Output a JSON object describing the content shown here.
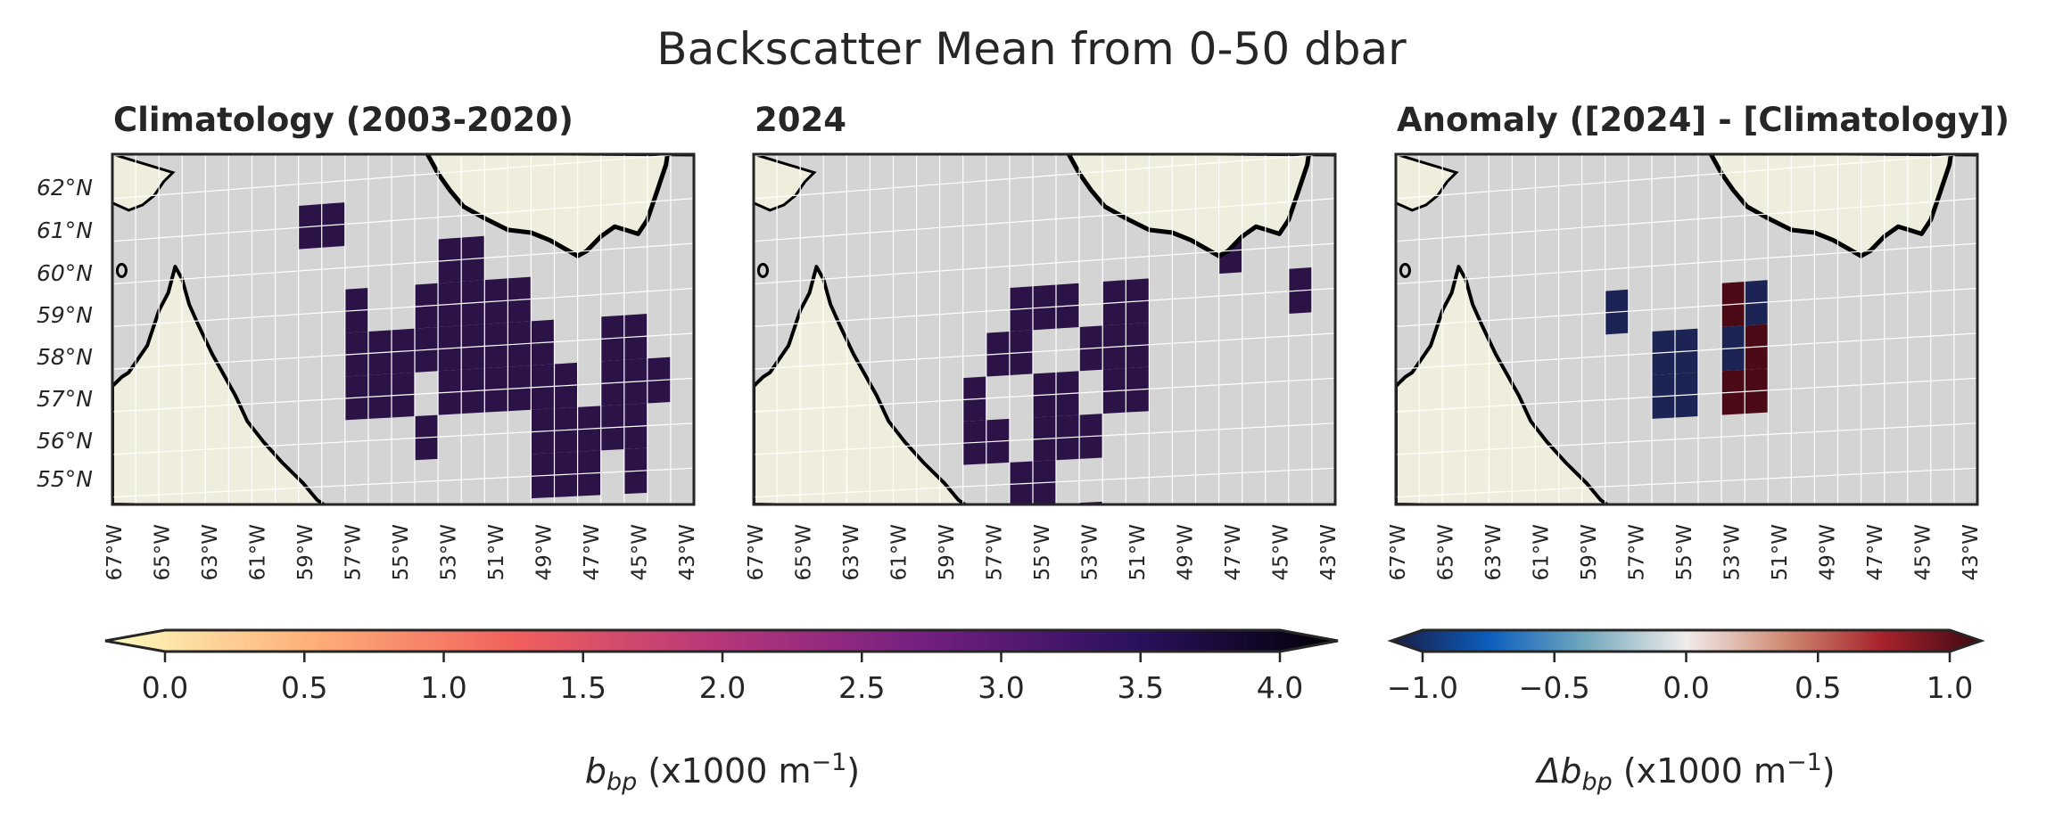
{
  "figure": {
    "title": "Backscatter Mean from 0-50 dbar"
  },
  "panels": [
    {
      "id": "clim",
      "title": "Climatology (2003-2020)",
      "lat_labels": [
        "62°N",
        "61°N",
        "60°N",
        "59°N",
        "58°N",
        "57°N",
        "56°N",
        "55°N"
      ],
      "lon_labels": [
        "67°W",
        "65°W",
        "63°W",
        "61°W",
        "59°W",
        "57°W",
        "55°W",
        "53°W",
        "51°W",
        "49°W",
        "47°W",
        "45°W",
        "43°W"
      ]
    },
    {
      "id": "y2024",
      "title": "2024",
      "lat_labels": [],
      "lon_labels": [
        "67°W",
        "65°W",
        "63°W",
        "61°W",
        "59°W",
        "57°W",
        "55°W",
        "53°W",
        "51°W",
        "49°W",
        "47°W",
        "45°W",
        "43°W"
      ]
    },
    {
      "id": "anom",
      "title": "Anomaly ([2024] - [Climatology])",
      "lat_labels": [],
      "lon_labels": [
        "67°W",
        "65°W",
        "63°W",
        "61°W",
        "59°W",
        "57°W",
        "55°W",
        "53°W",
        "51°W",
        "49°W",
        "47°W",
        "45°W",
        "43°W"
      ]
    }
  ],
  "map_extent": {
    "lon": [
      -67,
      -42
    ],
    "lat": [
      54.5,
      62.5
    ]
  },
  "colors": {
    "ocean": "#d4d4d4",
    "land": "#efeedd",
    "coast": "#000000",
    "grid": "#ffffff",
    "frame": "#262626"
  },
  "chart_data": {
    "type": "heatmap",
    "grid_cell_deg": {
      "lon": 1,
      "lat": 1
    },
    "climatology_cells": [
      {
        "lon": -58.5,
        "lat": 61.0,
        "value": 4.0
      },
      {
        "lon": -57.5,
        "lat": 61.0,
        "value": 4.0
      },
      {
        "lon": -56.5,
        "lat": 59.0,
        "value": 4.0
      },
      {
        "lon": -56.5,
        "lat": 58.0,
        "value": 4.0
      },
      {
        "lon": -56.5,
        "lat": 57.0,
        "value": 4.0
      },
      {
        "lon": -55.5,
        "lat": 58.0,
        "value": 4.0
      },
      {
        "lon": -55.5,
        "lat": 57.0,
        "value": 4.0
      },
      {
        "lon": -54.5,
        "lat": 58.0,
        "value": 4.0
      },
      {
        "lon": -54.5,
        "lat": 57.0,
        "value": 4.0
      },
      {
        "lon": -53.5,
        "lat": 59.0,
        "value": 4.0
      },
      {
        "lon": -53.5,
        "lat": 58.0,
        "value": 4.0
      },
      {
        "lon": -53.5,
        "lat": 56.0,
        "value": 4.0
      },
      {
        "lon": -52.5,
        "lat": 60.0,
        "value": 4.0
      },
      {
        "lon": -52.5,
        "lat": 59.0,
        "value": 4.0
      },
      {
        "lon": -52.5,
        "lat": 58.0,
        "value": 4.0
      },
      {
        "lon": -52.5,
        "lat": 57.0,
        "value": 4.0
      },
      {
        "lon": -51.5,
        "lat": 60.0,
        "value": 4.0
      },
      {
        "lon": -51.5,
        "lat": 59.0,
        "value": 4.0
      },
      {
        "lon": -51.5,
        "lat": 58.0,
        "value": 4.0
      },
      {
        "lon": -51.5,
        "lat": 57.0,
        "value": 4.0
      },
      {
        "lon": -50.5,
        "lat": 59.0,
        "value": 4.0
      },
      {
        "lon": -50.5,
        "lat": 58.0,
        "value": 4.0
      },
      {
        "lon": -50.5,
        "lat": 57.0,
        "value": 4.0
      },
      {
        "lon": -49.5,
        "lat": 59.0,
        "value": 4.0
      },
      {
        "lon": -49.5,
        "lat": 58.0,
        "value": 4.0
      },
      {
        "lon": -49.5,
        "lat": 57.0,
        "value": 4.0
      },
      {
        "lon": -48.5,
        "lat": 58.0,
        "value": 4.0
      },
      {
        "lon": -48.5,
        "lat": 57.0,
        "value": 4.0
      },
      {
        "lon": -48.5,
        "lat": 56.0,
        "value": 4.0
      },
      {
        "lon": -48.5,
        "lat": 55.0,
        "value": 4.0
      },
      {
        "lon": -47.5,
        "lat": 57.0,
        "value": 4.0
      },
      {
        "lon": -47.5,
        "lat": 56.0,
        "value": 4.0
      },
      {
        "lon": -47.5,
        "lat": 55.0,
        "value": 4.0
      },
      {
        "lon": -46.5,
        "lat": 56.0,
        "value": 4.0
      },
      {
        "lon": -46.5,
        "lat": 55.0,
        "value": 4.0
      },
      {
        "lon": -45.5,
        "lat": 58.0,
        "value": 4.0
      },
      {
        "lon": -45.5,
        "lat": 57.0,
        "value": 4.0
      },
      {
        "lon": -45.5,
        "lat": 56.0,
        "value": 4.0
      },
      {
        "lon": -44.5,
        "lat": 58.0,
        "value": 4.0
      },
      {
        "lon": -44.5,
        "lat": 57.0,
        "value": 4.0
      },
      {
        "lon": -44.5,
        "lat": 56.0,
        "value": 4.0
      },
      {
        "lon": -44.5,
        "lat": 55.0,
        "value": 4.0
      },
      {
        "lon": -43.5,
        "lat": 57.0,
        "value": 4.0
      }
    ],
    "y2024_cells": [
      {
        "lon": -57.5,
        "lat": 57.0,
        "value": 4.0
      },
      {
        "lon": -57.5,
        "lat": 56.0,
        "value": 4.0
      },
      {
        "lon": -56.5,
        "lat": 58.0,
        "value": 4.0
      },
      {
        "lon": -56.5,
        "lat": 56.0,
        "value": 4.0
      },
      {
        "lon": -55.5,
        "lat": 59.0,
        "value": 4.0
      },
      {
        "lon": -55.5,
        "lat": 58.0,
        "value": 4.0
      },
      {
        "lon": -55.5,
        "lat": 55.0,
        "value": 4.0
      },
      {
        "lon": -54.5,
        "lat": 59.0,
        "value": 4.0
      },
      {
        "lon": -54.5,
        "lat": 57.0,
        "value": 4.0
      },
      {
        "lon": -54.5,
        "lat": 56.0,
        "value": 4.0
      },
      {
        "lon": -54.5,
        "lat": 55.0,
        "value": 4.0
      },
      {
        "lon": -54.5,
        "lat": 54.0,
        "value": 4.0
      },
      {
        "lon": -53.5,
        "lat": 59.0,
        "value": 4.0
      },
      {
        "lon": -53.5,
        "lat": 57.0,
        "value": 4.0
      },
      {
        "lon": -53.5,
        "lat": 56.0,
        "value": 4.0
      },
      {
        "lon": -52.5,
        "lat": 58.0,
        "value": 4.0
      },
      {
        "lon": -52.5,
        "lat": 56.0,
        "value": 4.0
      },
      {
        "lon": -52.5,
        "lat": 54.0,
        "value": 4.0
      },
      {
        "lon": -51.5,
        "lat": 59.0,
        "value": 4.0
      },
      {
        "lon": -51.5,
        "lat": 58.0,
        "value": 4.0
      },
      {
        "lon": -51.5,
        "lat": 57.0,
        "value": 4.0
      },
      {
        "lon": -50.5,
        "lat": 59.0,
        "value": 4.0
      },
      {
        "lon": -50.5,
        "lat": 58.0,
        "value": 4.0
      },
      {
        "lon": -50.5,
        "lat": 57.0,
        "value": 4.0
      },
      {
        "lon": -46.5,
        "lat": 60.0,
        "value": 4.0
      },
      {
        "lon": -43.5,
        "lat": 59.0,
        "value": 4.0
      }
    ],
    "anomaly_cells": [
      {
        "lon": -57.5,
        "lat": 59.0,
        "value": -1.0
      },
      {
        "lon": -55.5,
        "lat": 58.0,
        "value": -1.0
      },
      {
        "lon": -55.5,
        "lat": 57.0,
        "value": -1.0
      },
      {
        "lon": -54.5,
        "lat": 58.0,
        "value": -1.0
      },
      {
        "lon": -54.5,
        "lat": 57.0,
        "value": -1.0
      },
      {
        "lon": -52.5,
        "lat": 59.0,
        "value": 1.0
      },
      {
        "lon": -52.5,
        "lat": 58.0,
        "value": -1.0
      },
      {
        "lon": -52.5,
        "lat": 57.0,
        "value": 1.0
      },
      {
        "lon": -51.5,
        "lat": 59.0,
        "value": -1.0
      },
      {
        "lon": -51.5,
        "lat": 58.0,
        "value": 1.0
      },
      {
        "lon": -51.5,
        "lat": 57.0,
        "value": 1.0
      }
    ],
    "colorbars": [
      {
        "id": "bbp",
        "label": "b_bp (x1000 m⁻¹)",
        "label_parts": {
          "base": "b",
          "sub": "bp",
          "rest": " (x1000 m",
          "sup": "−1",
          "close": ")"
        },
        "range": [
          0.0,
          4.0
        ],
        "ticks": [
          "0.0",
          "0.5",
          "1.0",
          "1.5",
          "2.0",
          "2.5",
          "3.0",
          "3.5",
          "4.0"
        ],
        "tick_values": [
          0.0,
          0.5,
          1.0,
          1.5,
          2.0,
          2.5,
          3.0,
          3.5,
          4.0
        ],
        "cmap": "magma_r",
        "cmap_colors": [
          "#fcfdbf",
          "#feb078",
          "#f1605d",
          "#b5367a",
          "#721f81",
          "#2c115f",
          "#000004"
        ],
        "extend": "both"
      },
      {
        "id": "anom",
        "label": "Δb_bp (x1000 m⁻¹)",
        "label_parts": {
          "base": "Δb",
          "sub": "bp",
          "rest": " (x1000 m",
          "sup": "−1",
          "close": ")"
        },
        "range": [
          -1.0,
          1.0
        ],
        "ticks": [
          "−1.0",
          "−0.5",
          "0.0",
          "0.5",
          "1.0"
        ],
        "tick_values": [
          -1.0,
          -0.5,
          0.0,
          0.5,
          1.0
        ],
        "cmap": "balance",
        "cmap_colors": [
          "#181c43",
          "#0c5ebe",
          "#75aabe",
          "#f1eceb",
          "#d08b73",
          "#a7222c",
          "#3c0912"
        ],
        "extend": "both"
      }
    ]
  }
}
